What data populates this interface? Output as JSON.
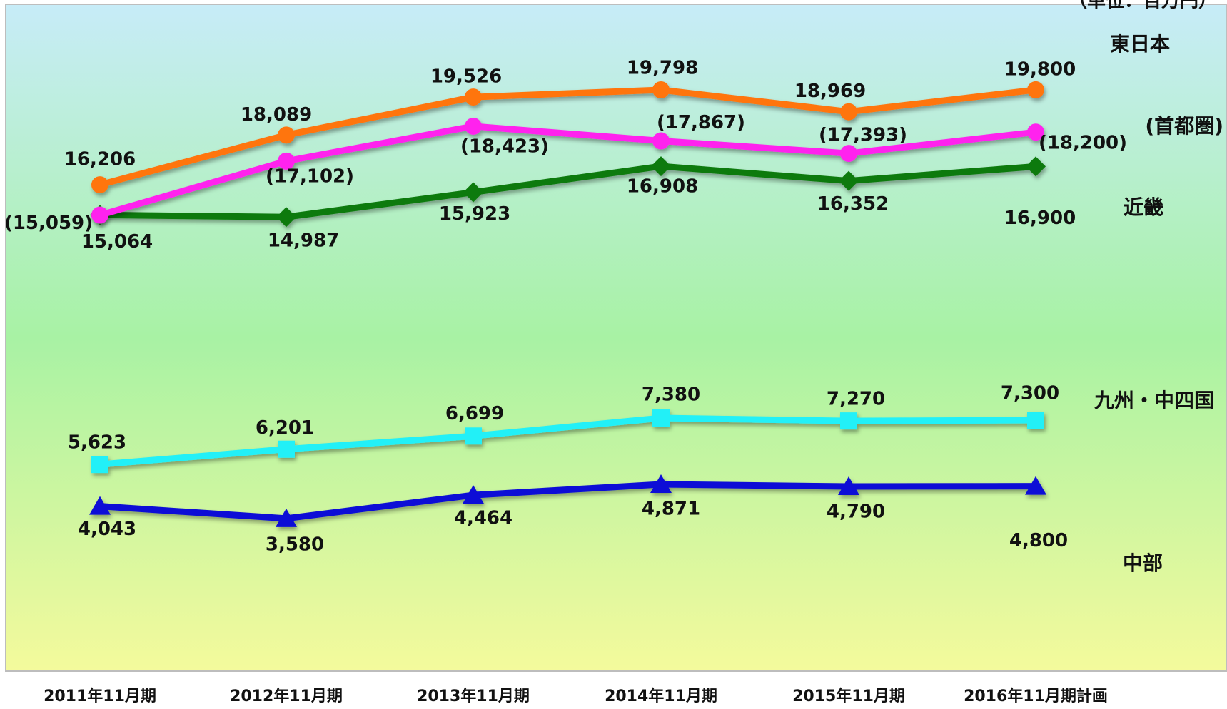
{
  "chart_data": {
    "type": "line",
    "title": "",
    "unit_label": "（単位：百万円）",
    "xlabel": "",
    "ylabel": "",
    "ylim": [
      2500,
      21500
    ],
    "grid": false,
    "legend": "none (series names printed next to last points)",
    "categories": [
      "2011年11月期",
      "2012年11月期",
      "2013年11月期",
      "2014年11月期",
      "2015年11月期",
      "2016年11月期計画"
    ],
    "background_gradient": [
      "#c7ecf8",
      "#a8f2a4",
      "#f4fa9c"
    ],
    "series": [
      {
        "name": "東日本",
        "color": "#ff7410",
        "marker": "circle",
        "values": [
          16206,
          18089,
          19526,
          19798,
          18969,
          19800
        ],
        "labels": [
          "16,206",
          "18,089",
          "19,526",
          "19,798",
          "18,969",
          "19,800"
        ]
      },
      {
        "name": "(首都圏)",
        "color": "#ff22ee",
        "marker": "circle",
        "values": [
          15059,
          17102,
          18423,
          17867,
          17393,
          18200
        ],
        "labels": [
          "(15,059)",
          "(17,102)",
          "(18,423)",
          "(17,867)",
          "(17,393)",
          "(18,200)"
        ]
      },
      {
        "name": "近畿",
        "color": "#0b7a0b",
        "marker": "diamond",
        "values": [
          15064,
          14987,
          15923,
          16908,
          16352,
          16900
        ],
        "labels": [
          "15,064",
          "14,987",
          "15,923",
          "16,908",
          "16,352",
          "16,900"
        ]
      },
      {
        "name": "九州・中四国",
        "color": "#22f0f7",
        "marker": "square",
        "values": [
          5623,
          6201,
          6699,
          7380,
          7270,
          7300
        ],
        "labels": [
          "5,623",
          "6,201",
          "6,699",
          "7,380",
          "7,270",
          "7,300"
        ]
      },
      {
        "name": "中部",
        "color": "#0a10d6",
        "marker": "triangle",
        "values": [
          4043,
          3580,
          4464,
          4871,
          4790,
          4800
        ],
        "labels": [
          "4,043",
          "3,580",
          "4,464",
          "4,871",
          "4,790",
          "4,800"
        ]
      }
    ]
  }
}
